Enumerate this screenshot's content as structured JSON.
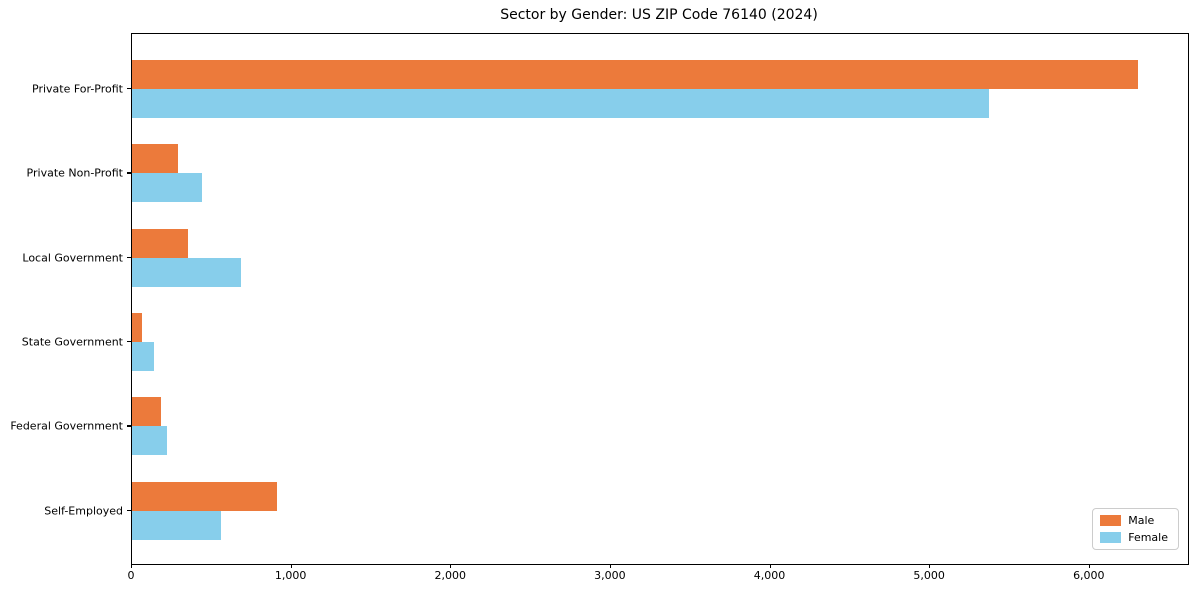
{
  "title": "Sector by Gender: US ZIP Code 76140 (2024)",
  "chart_data": {
    "type": "bar",
    "orientation": "horizontal",
    "title": "Sector by Gender: US ZIP Code 76140 (2024)",
    "xlabel": "",
    "ylabel": "",
    "categories": [
      "Private For-Profit",
      "Private Non-Profit",
      "Local Government",
      "State Government",
      "Federal Government",
      "Self-Employed"
    ],
    "series": [
      {
        "name": "Male",
        "color": "#ec7a3b",
        "values": [
          6300,
          290,
          350,
          60,
          180,
          910
        ]
      },
      {
        "name": "Female",
        "color": "#87ceeb",
        "values": [
          5370,
          440,
          680,
          135,
          220,
          560
        ]
      }
    ],
    "xlim": [
      0,
      6615
    ],
    "xticks": [
      0,
      1000,
      2000,
      3000,
      4000,
      5000,
      6000
    ],
    "xtick_labels": [
      "0",
      "1,000",
      "2,000",
      "3,000",
      "4,000",
      "5,000",
      "6,000"
    ],
    "grid": false,
    "legend_position": "lower right",
    "legend_entries": [
      "Male",
      "Female"
    ]
  }
}
